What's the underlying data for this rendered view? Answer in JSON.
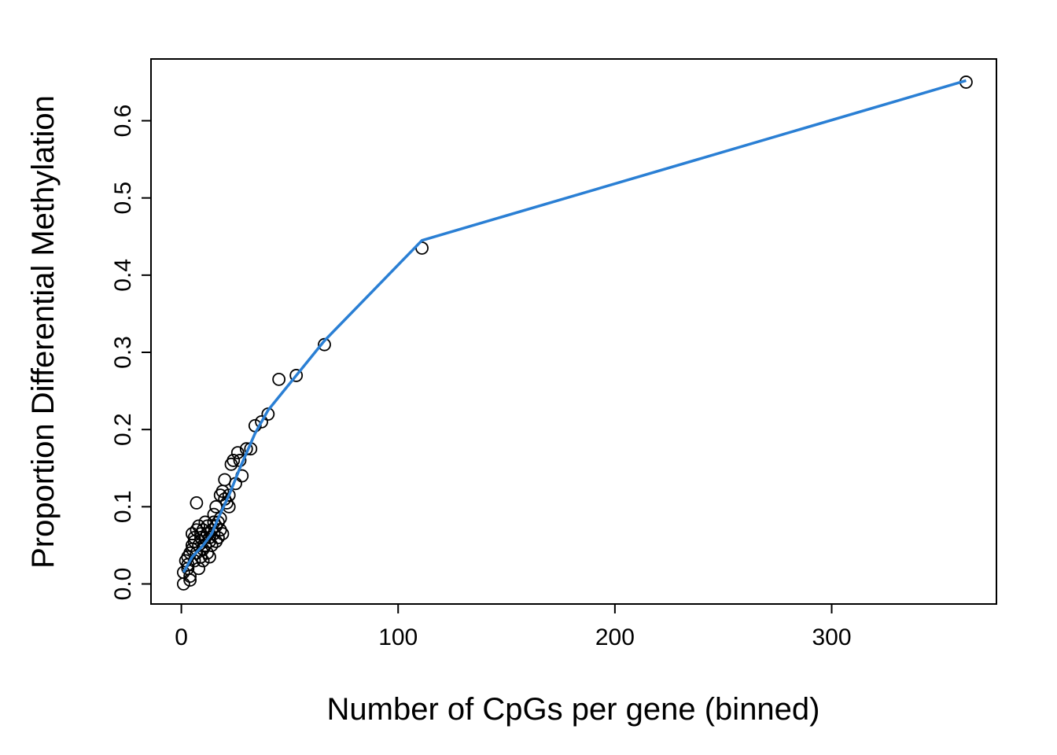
{
  "chart_data": {
    "type": "scatter",
    "title": "",
    "xlabel": "Number of CpGs per gene (binned)",
    "ylabel": "Proportion Differential Methylation",
    "xlim": [
      -14,
      376
    ],
    "ylim": [
      -0.026,
      0.68
    ],
    "x_ticks": [
      0,
      100,
      200,
      300
    ],
    "x_tick_labels": [
      "0",
      "100",
      "200",
      "300"
    ],
    "y_ticks": [
      0.0,
      0.1,
      0.2,
      0.3,
      0.4,
      0.5,
      0.6
    ],
    "y_tick_labels": [
      "0.0",
      "0.1",
      "0.2",
      "0.3",
      "0.4",
      "0.5",
      "0.6"
    ],
    "grid": false,
    "colors": {
      "points": "#000000",
      "line": "#2a7fd4"
    },
    "points": [
      [
        1,
        0.0
      ],
      [
        1,
        0.015
      ],
      [
        2,
        0.03
      ],
      [
        3,
        0.02
      ],
      [
        3,
        0.035
      ],
      [
        4,
        0.01
      ],
      [
        4,
        0.005
      ],
      [
        3,
        0.025
      ],
      [
        4,
        0.04
      ],
      [
        5,
        0.045
      ],
      [
        5,
        0.05
      ],
      [
        5,
        0.065
      ],
      [
        6,
        0.03
      ],
      [
        6,
        0.055
      ],
      [
        6,
        0.06
      ],
      [
        7,
        0.04
      ],
      [
        7,
        0.07
      ],
      [
        7,
        0.105
      ],
      [
        8,
        0.02
      ],
      [
        8,
        0.075
      ],
      [
        8,
        0.05
      ],
      [
        9,
        0.035
      ],
      [
        9,
        0.06
      ],
      [
        9,
        0.065
      ],
      [
        10,
        0.03
      ],
      [
        10,
        0.045
      ],
      [
        10,
        0.07
      ],
      [
        11,
        0.05
      ],
      [
        11,
        0.08
      ],
      [
        11,
        0.06
      ],
      [
        12,
        0.04
      ],
      [
        12,
        0.065
      ],
      [
        12,
        0.075
      ],
      [
        13,
        0.035
      ],
      [
        13,
        0.055
      ],
      [
        13,
        0.06
      ],
      [
        14,
        0.05
      ],
      [
        14,
        0.07
      ],
      [
        15,
        0.065
      ],
      [
        15,
        0.08
      ],
      [
        15,
        0.09
      ],
      [
        16,
        0.055
      ],
      [
        16,
        0.075
      ],
      [
        16,
        0.1
      ],
      [
        17,
        0.06
      ],
      [
        17,
        0.08
      ],
      [
        18,
        0.07
      ],
      [
        18,
        0.085
      ],
      [
        18,
        0.115
      ],
      [
        19,
        0.12
      ],
      [
        19,
        0.065
      ],
      [
        20,
        0.11
      ],
      [
        20,
        0.135
      ],
      [
        21,
        0.105
      ],
      [
        22,
        0.1
      ],
      [
        22,
        0.115
      ],
      [
        23,
        0.155
      ],
      [
        24,
        0.16
      ],
      [
        25,
        0.13
      ],
      [
        26,
        0.17
      ],
      [
        27,
        0.16
      ],
      [
        28,
        0.14
      ],
      [
        30,
        0.175
      ],
      [
        32,
        0.175
      ],
      [
        34,
        0.205
      ],
      [
        37,
        0.21
      ],
      [
        40,
        0.22
      ],
      [
        45,
        0.265
      ],
      [
        53,
        0.27
      ],
      [
        66,
        0.31
      ],
      [
        111,
        0.435
      ],
      [
        362,
        0.65
      ]
    ],
    "smooth_line": [
      [
        1,
        0.015
      ],
      [
        5,
        0.035
      ],
      [
        10,
        0.05
      ],
      [
        14,
        0.065
      ],
      [
        17,
        0.085
      ],
      [
        22,
        0.115
      ],
      [
        27,
        0.15
      ],
      [
        34,
        0.195
      ],
      [
        40,
        0.225
      ],
      [
        53,
        0.27
      ],
      [
        66,
        0.315
      ],
      [
        111,
        0.445
      ],
      [
        362,
        0.652
      ]
    ]
  }
}
